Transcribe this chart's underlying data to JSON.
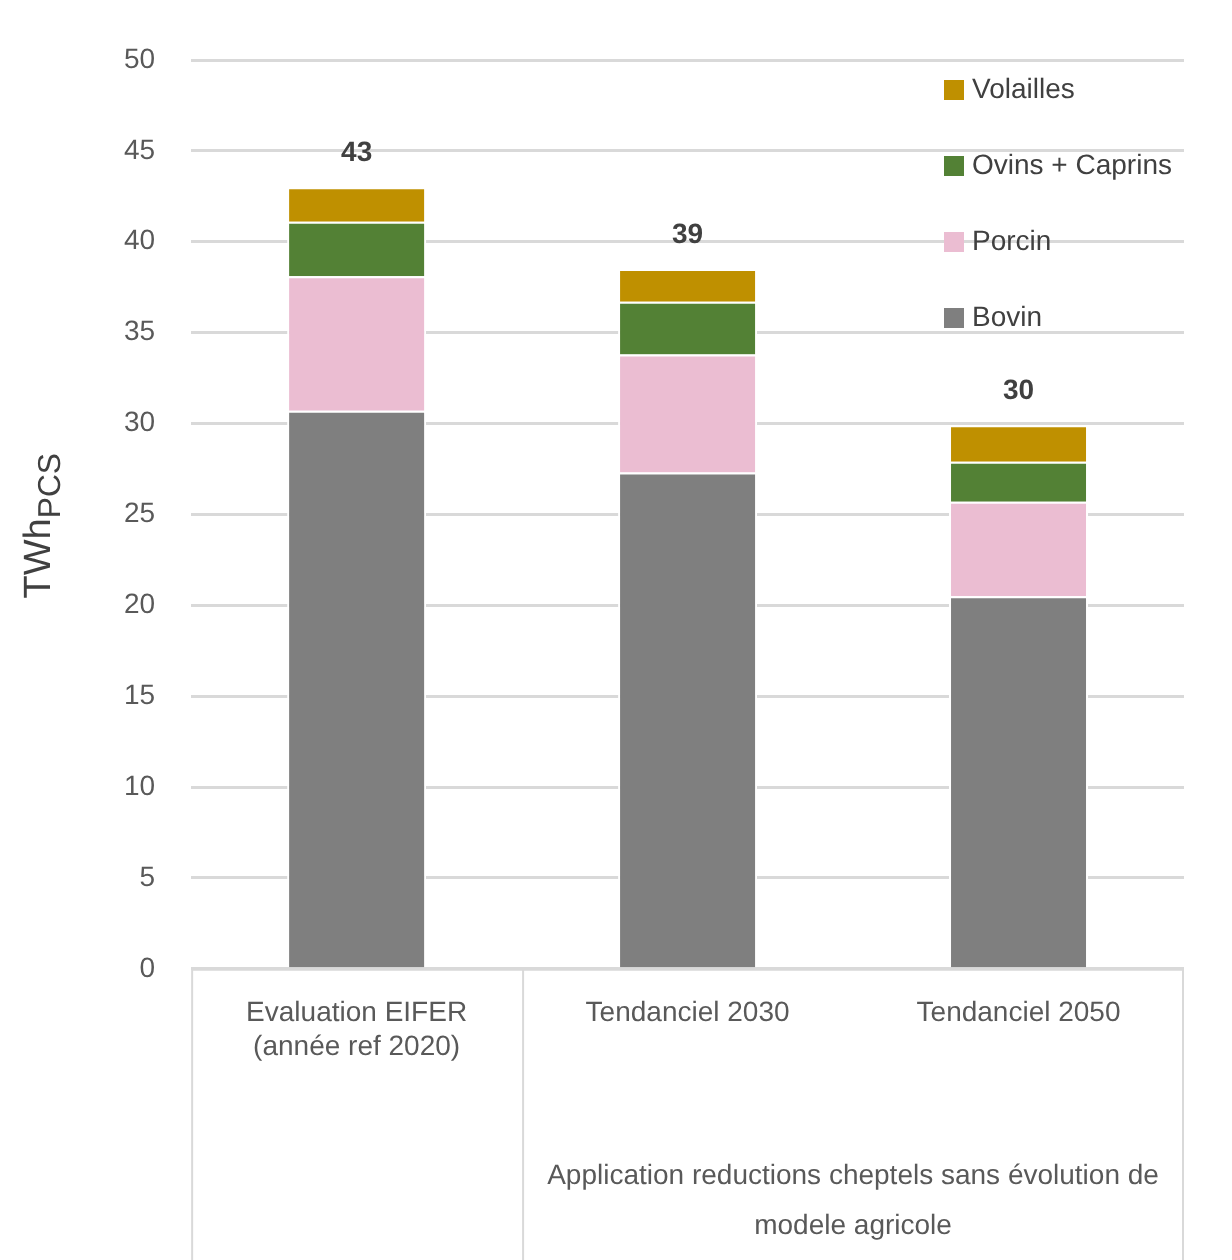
{
  "chart_data": {
    "type": "bar",
    "stacked": true,
    "ylabel": "TWh$_{PCS}$",
    "categories": [
      "Evaluation EIFER (année ref 2020)",
      "Tendanciel 2030",
      "Tendanciel 2050"
    ],
    "series": [
      {
        "name": "Bovin",
        "color": "#7f7f7f",
        "values": [
          30.7,
          27.3,
          20.5
        ]
      },
      {
        "name": "Porcin",
        "color": "#ebbdd2",
        "values": [
          7.4,
          6.5,
          5.2
        ]
      },
      {
        "name": "Ovins + Caprins",
        "color": "#538135",
        "values": [
          3.0,
          2.9,
          2.2
        ]
      },
      {
        "name": "Volailles",
        "color": "#bf9000",
        "values": [
          1.9,
          1.8,
          2.0
        ]
      }
    ],
    "totals": [
      "43",
      "39",
      "30"
    ],
    "ylim": [
      0,
      50
    ],
    "yticks": [
      0,
      5,
      10,
      15,
      20,
      25,
      30,
      35,
      40,
      45,
      50
    ],
    "grid": "y",
    "legend": "top right",
    "annotations": [
      "Application reductions cheptels sans évolution de modele agricole"
    ]
  }
}
